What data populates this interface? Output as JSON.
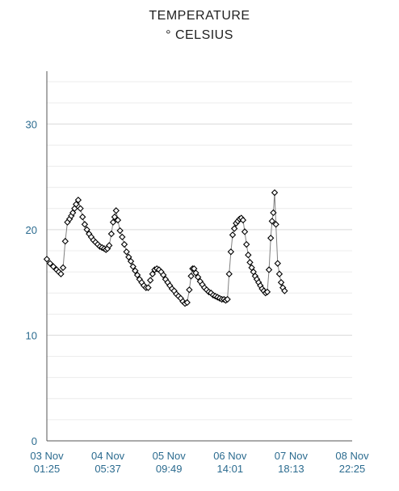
{
  "chart_data": {
    "type": "line",
    "title": "TEMPERATURE",
    "subtitle": "° CELSIUS",
    "xlabel": "",
    "ylabel": "",
    "ylim": [
      0,
      35
    ],
    "grid": true,
    "y_ticks": [
      0,
      10,
      20,
      30
    ],
    "x_tick_labels": [
      [
        "03 Nov",
        "01:25"
      ],
      [
        "04 Nov",
        "05:37"
      ],
      [
        "05 Nov",
        "09:49"
      ],
      [
        "06 Nov",
        "14:01"
      ],
      [
        "07 Nov",
        "18:13"
      ],
      [
        "08 Nov",
        "22:25"
      ]
    ],
    "x_tick_positions_hours": [
      0,
      28.2,
      56.4,
      84.6,
      112.8,
      141.0
    ],
    "series": [
      {
        "marker": "diamond",
        "points": [
          [
            0.0,
            17.2
          ],
          [
            1.5,
            16.8
          ],
          [
            3.0,
            16.5
          ],
          [
            4.5,
            16.2
          ],
          [
            5.5,
            16.0
          ],
          [
            6.5,
            15.8
          ],
          [
            7.5,
            16.4
          ],
          [
            8.5,
            18.9
          ],
          [
            9.5,
            20.7
          ],
          [
            10.5,
            21.0
          ],
          [
            11.3,
            21.3
          ],
          [
            12.0,
            21.6
          ],
          [
            12.8,
            22.0
          ],
          [
            13.5,
            22.4
          ],
          [
            14.5,
            22.8
          ],
          [
            15.5,
            22.0
          ],
          [
            16.5,
            21.2
          ],
          [
            17.5,
            20.5
          ],
          [
            18.5,
            20.0
          ],
          [
            19.5,
            19.6
          ],
          [
            20.5,
            19.3
          ],
          [
            21.5,
            19.0
          ],
          [
            22.5,
            18.8
          ],
          [
            23.5,
            18.6
          ],
          [
            24.5,
            18.4
          ],
          [
            25.5,
            18.3
          ],
          [
            26.5,
            18.2
          ],
          [
            27.3,
            18.1
          ],
          [
            28.0,
            18.2
          ],
          [
            28.8,
            18.5
          ],
          [
            29.8,
            19.6
          ],
          [
            30.6,
            20.7
          ],
          [
            31.3,
            21.2
          ],
          [
            32.0,
            21.8
          ],
          [
            32.8,
            20.9
          ],
          [
            33.8,
            19.9
          ],
          [
            34.8,
            19.3
          ],
          [
            35.8,
            18.6
          ],
          [
            36.8,
            17.9
          ],
          [
            37.8,
            17.4
          ],
          [
            38.8,
            17.0
          ],
          [
            39.8,
            16.5
          ],
          [
            40.8,
            16.1
          ],
          [
            41.8,
            15.7
          ],
          [
            42.8,
            15.3
          ],
          [
            43.8,
            15.0
          ],
          [
            44.8,
            14.7
          ],
          [
            45.8,
            14.5
          ],
          [
            46.8,
            14.5
          ],
          [
            47.8,
            15.2
          ],
          [
            48.8,
            15.8
          ],
          [
            49.8,
            16.2
          ],
          [
            50.8,
            16.3
          ],
          [
            51.8,
            16.2
          ],
          [
            52.8,
            16.0
          ],
          [
            53.8,
            15.7
          ],
          [
            54.8,
            15.3
          ],
          [
            55.8,
            15.0
          ],
          [
            56.8,
            14.7
          ],
          [
            57.8,
            14.4
          ],
          [
            58.8,
            14.2
          ],
          [
            59.8,
            13.9
          ],
          [
            60.8,
            13.7
          ],
          [
            61.8,
            13.5
          ],
          [
            62.8,
            13.2
          ],
          [
            63.8,
            13.0
          ],
          [
            64.8,
            13.1
          ],
          [
            65.8,
            14.3
          ],
          [
            66.6,
            15.6
          ],
          [
            67.3,
            16.3
          ],
          [
            68.0,
            16.3
          ],
          [
            68.8,
            15.9
          ],
          [
            69.8,
            15.5
          ],
          [
            70.8,
            15.1
          ],
          [
            71.8,
            14.8
          ],
          [
            72.8,
            14.5
          ],
          [
            73.8,
            14.3
          ],
          [
            74.8,
            14.1
          ],
          [
            75.8,
            14.0
          ],
          [
            76.8,
            13.8
          ],
          [
            77.8,
            13.7
          ],
          [
            78.8,
            13.6
          ],
          [
            79.8,
            13.5
          ],
          [
            80.8,
            13.4
          ],
          [
            81.8,
            13.4
          ],
          [
            82.6,
            13.3
          ],
          [
            83.4,
            13.4
          ],
          [
            84.2,
            15.8
          ],
          [
            85.0,
            17.9
          ],
          [
            85.8,
            19.5
          ],
          [
            86.6,
            20.1
          ],
          [
            87.4,
            20.6
          ],
          [
            88.2,
            20.8
          ],
          [
            89.0,
            21.0
          ],
          [
            89.8,
            21.1
          ],
          [
            90.6,
            20.9
          ],
          [
            91.4,
            19.8
          ],
          [
            92.2,
            18.6
          ],
          [
            93.0,
            17.6
          ],
          [
            93.8,
            16.9
          ],
          [
            94.6,
            16.4
          ],
          [
            95.4,
            16.0
          ],
          [
            96.2,
            15.6
          ],
          [
            97.0,
            15.3
          ],
          [
            97.8,
            15.0
          ],
          [
            98.6,
            14.7
          ],
          [
            99.4,
            14.4
          ],
          [
            100.2,
            14.2
          ],
          [
            101.0,
            14.0
          ],
          [
            101.8,
            14.1
          ],
          [
            102.6,
            16.2
          ],
          [
            103.4,
            19.2
          ],
          [
            104.0,
            20.8
          ],
          [
            104.6,
            21.6
          ],
          [
            105.2,
            23.5
          ],
          [
            105.8,
            20.5
          ],
          [
            106.6,
            16.8
          ],
          [
            107.4,
            15.8
          ],
          [
            108.2,
            15.0
          ],
          [
            109.0,
            14.5
          ],
          [
            109.8,
            14.2
          ]
        ]
      }
    ],
    "colors": {
      "line": "#808080",
      "marker_stroke": "#000000",
      "tick_text": "#2b6b8f",
      "grid": "#d9d9d9"
    }
  }
}
